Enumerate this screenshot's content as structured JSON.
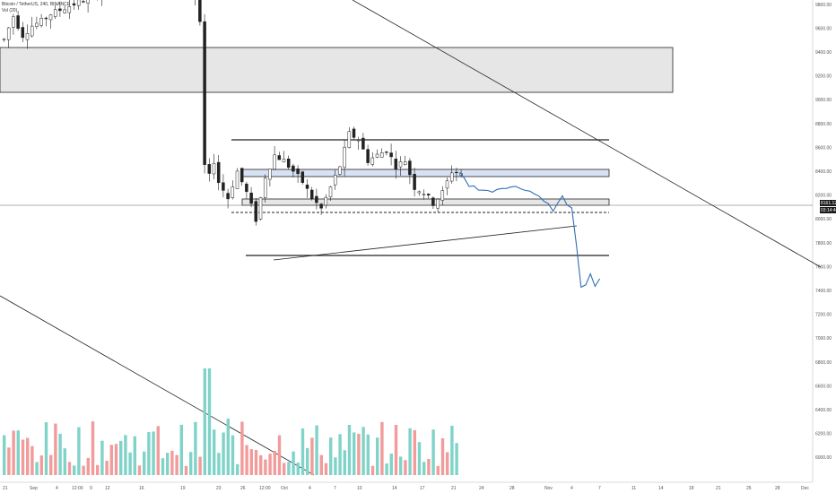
{
  "symbol": {
    "title": "Bitcoin / TetherUS, 240, BINANCE",
    "indicator": "Vol (20)"
  },
  "colors": {
    "background": "#ffffff",
    "candle_up": "#ffffff",
    "candle_down": "#222222",
    "candle_outline": "#222222",
    "projection": "#2f6fb5",
    "volume_up": "#7fd3c8",
    "volume_down": "#f29b9b",
    "zone_gray": "#e6e6e6",
    "zone_blue": "#d7e2f5",
    "line": "#222222",
    "price_label_bg": "#1a1a1a",
    "price_label_text": "#ffffff"
  },
  "chart_data": {
    "type": "candlestick",
    "title": "Bitcoin / TetherUS, 240, BINANCE",
    "xlabel": "",
    "ylabel": "",
    "ylim": [
      6400,
      9800
    ],
    "price_ticks": [
      "9800.00",
      "9600.00",
      "9400.00",
      "9200.00",
      "9000.00",
      "8800.00",
      "8600.00",
      "8400.00",
      "8200.00",
      "8000.00",
      "7800.00",
      "7600.00",
      "7400.00",
      "7200.00",
      "7000.00",
      "6800.00",
      "6600.00",
      "6400.00",
      "6200.00",
      "6000.00"
    ],
    "x_ticks": [
      "21",
      "Sep",
      "4",
      "12:00",
      "9",
      "12",
      "16",
      "19",
      "23",
      "26",
      "12:00",
      "Oct",
      "4",
      "7",
      "10",
      "14",
      "17",
      "21",
      "24",
      "28",
      "Nov",
      "4",
      "7",
      "11",
      "14",
      "18",
      "21",
      "25",
      "28",
      "Dec"
    ],
    "current_price": {
      "value": 8161.12,
      "label": "8161.12",
      "countdown": "03:14:40"
    },
    "price_path": [
      {
        "i": 0,
        "close": 9480
      },
      {
        "i": 2,
        "close": 9700
      },
      {
        "i": 4,
        "close": 9520
      },
      {
        "i": 6,
        "close": 9610
      },
      {
        "i": 8,
        "close": 9650
      },
      {
        "i": 10,
        "close": 9720
      },
      {
        "i": 24,
        "close": 9980
      },
      {
        "i": 26,
        "close": 9980
      },
      {
        "i": 38,
        "close": 9960
      },
      {
        "i": 40,
        "close": 9980
      },
      {
        "i": 41,
        "close": 9860
      },
      {
        "i": 42,
        "close": 9620
      },
      {
        "i": 43,
        "close": 8300
      },
      {
        "i": 44,
        "close": 8200
      },
      {
        "i": 45,
        "close": 8350
      },
      {
        "i": 46,
        "close": 8150
      },
      {
        "i": 48,
        "close": 8000
      },
      {
        "i": 50,
        "close": 8250
      },
      {
        "i": 52,
        "close": 8050
      },
      {
        "i": 54,
        "close": 7800
      },
      {
        "i": 56,
        "close": 8200
      },
      {
        "i": 58,
        "close": 8400
      },
      {
        "i": 60,
        "close": 8350
      },
      {
        "i": 62,
        "close": 8250
      },
      {
        "i": 64,
        "close": 8150
      },
      {
        "i": 66,
        "close": 8000
      },
      {
        "i": 68,
        "close": 7900
      },
      {
        "i": 70,
        "close": 8100
      },
      {
        "i": 72,
        "close": 8300
      },
      {
        "i": 74,
        "close": 8600
      },
      {
        "i": 76,
        "close": 8550
      },
      {
        "i": 78,
        "close": 8350
      },
      {
        "i": 80,
        "close": 8400
      },
      {
        "i": 82,
        "close": 8450
      },
      {
        "i": 84,
        "close": 8300
      },
      {
        "i": 86,
        "close": 8350
      },
      {
        "i": 88,
        "close": 8100
      },
      {
        "i": 90,
        "close": 8050
      },
      {
        "i": 92,
        "close": 7950
      },
      {
        "i": 94,
        "close": 8050
      },
      {
        "i": 96,
        "close": 8250
      },
      {
        "i": 98,
        "close": 8230
      }
    ],
    "projection_path": [
      {
        "i": 98,
        "close": 8230
      },
      {
        "i": 100,
        "close": 8120
      },
      {
        "i": 104,
        "close": 8060
      },
      {
        "i": 108,
        "close": 8110
      },
      {
        "i": 112,
        "close": 8090
      },
      {
        "i": 116,
        "close": 7990
      },
      {
        "i": 118,
        "close": 7880
      },
      {
        "i": 120,
        "close": 8010
      },
      {
        "i": 122,
        "close": 7890
      },
      {
        "i": 123,
        "close": 7550
      },
      {
        "i": 124,
        "close": 7150
      },
      {
        "i": 125,
        "close": 7200
      },
      {
        "i": 126,
        "close": 7300
      },
      {
        "i": 127,
        "close": 7180
      },
      {
        "i": 128,
        "close": 7230
      }
    ],
    "volume_note": "volume bars, relative height"
  }
}
